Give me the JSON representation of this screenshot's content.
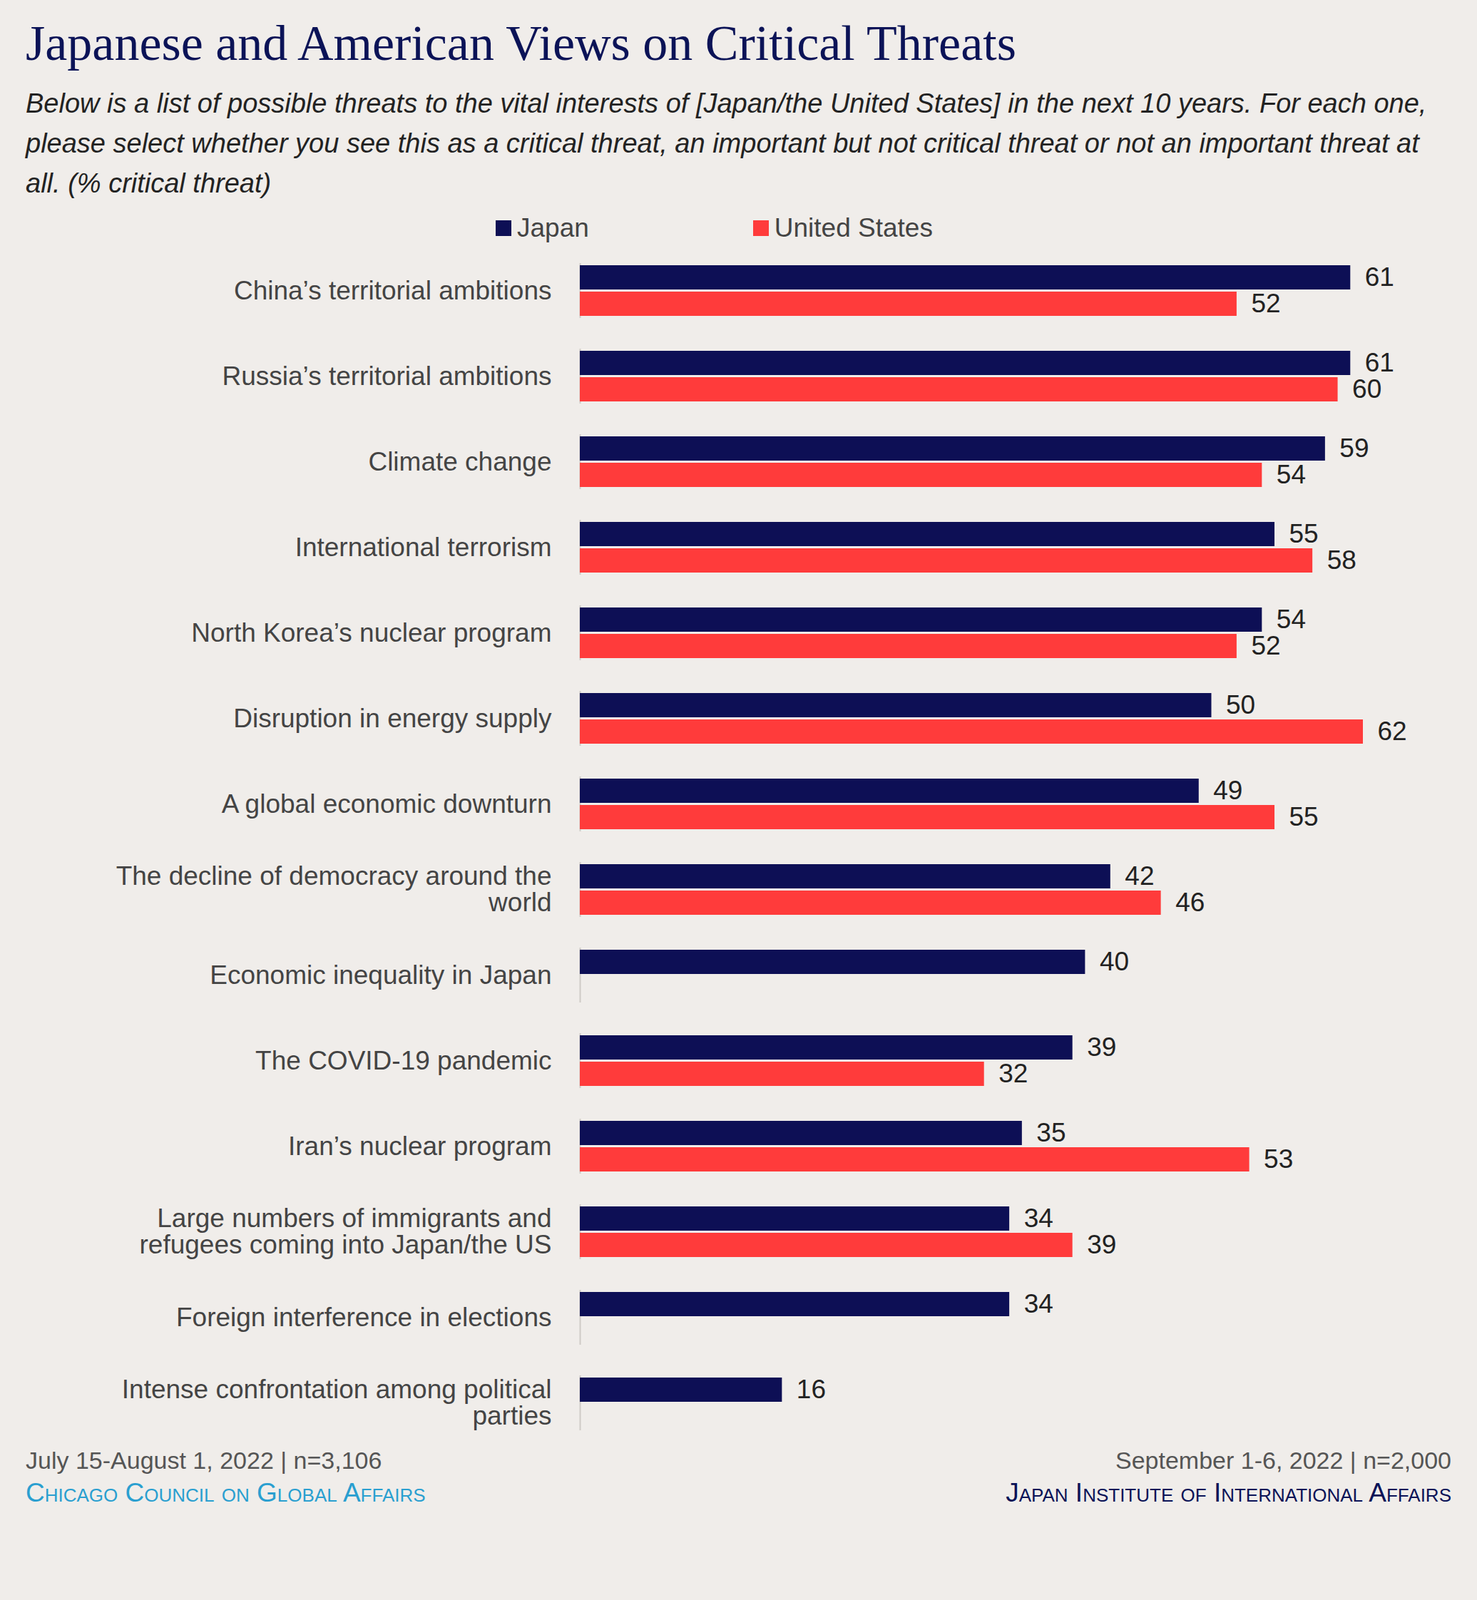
{
  "chart_data": {
    "type": "bar",
    "orientation": "horizontal",
    "title": "Japanese and American Views on Critical Threats",
    "subtitle": "Below is a list of possible threats to the vital interests of [Japan/the United States] in the next 10 years. For each one, please select whether you see this as a critical threat, an important but not critical threat or not an important threat at all. (% critical threat)",
    "categories": [
      "China’s territorial ambitions",
      "Russia’s territorial ambitions",
      "Climate change",
      "International terrorism",
      "North Korea’s nuclear program",
      "Disruption in energy supply",
      "A global economic downturn",
      "The decline of democracy around the world",
      "Economic inequality in Japan",
      "The COVID-19 pandemic",
      "Iran’s nuclear program",
      "Large numbers of immigrants and refugees coming into Japan/the US",
      "Foreign interference in elections",
      "Intense confrontation among political parties"
    ],
    "series": [
      {
        "name": "Japan",
        "color": "#0d0f55",
        "values": [
          61,
          61,
          59,
          55,
          54,
          50,
          49,
          42,
          40,
          39,
          35,
          34,
          34,
          16
        ]
      },
      {
        "name": "United States",
        "color": "#ff3b3b",
        "values": [
          52,
          60,
          54,
          58,
          52,
          62,
          55,
          46,
          null,
          32,
          53,
          39,
          null,
          null
        ]
      }
    ],
    "xlim": [
      0,
      62
    ],
    "tick_labels": "y",
    "grid": false,
    "data_labels": true,
    "legend": "top",
    "annotations": [
      {
        "dates": "July 15-August 1, 2022 | n=3,106",
        "source": "Chicago Council on Global Affairs",
        "color": "#2a9fd0"
      },
      {
        "dates": "September 1-6, 2022  | n=2,000",
        "source": "Japan Institute of International Affairs",
        "color": "#0b1357"
      }
    ]
  }
}
